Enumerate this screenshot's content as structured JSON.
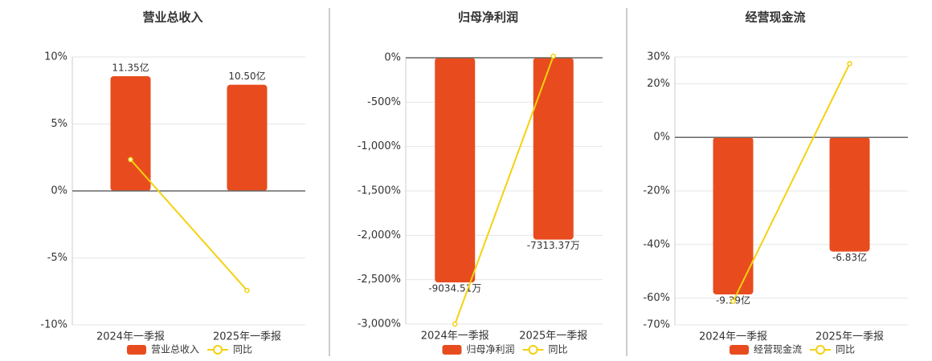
{
  "chart_data": [
    {
      "type": "bar",
      "title": "营业总收入",
      "categories": [
        "2024年一季报",
        "2025年一季报"
      ],
      "series": [
        {
          "name": "营业总收入",
          "type": "bar",
          "color": "#e84c1e",
          "axis": "y2",
          "values": [
            11.35,
            10.5
          ],
          "value_labels": [
            "11.35亿",
            "10.50亿"
          ]
        },
        {
          "name": "同比",
          "type": "line",
          "color": "#f5d10f",
          "values": [
            2.34,
            -7.43
          ]
        }
      ],
      "ylim": [
        -10,
        10
      ],
      "yticks": [
        {
          "value": -10,
          "label": "-10%"
        },
        {
          "value": -5,
          "label": "-5%"
        },
        {
          "value": 0,
          "label": "0%"
        },
        {
          "value": 5,
          "label": "5%"
        },
        {
          "value": 10,
          "label": "10%"
        }
      ],
      "y2lim": [
        -13.25,
        13.25
      ],
      "grid": true
    },
    {
      "type": "bar",
      "title": "归母净利润",
      "categories": [
        "2024年一季报",
        "2025年一季报"
      ],
      "series": [
        {
          "name": "归母净利润",
          "type": "bar",
          "color": "#e84c1e",
          "axis": "y2",
          "values": [
            -9034.51,
            -7313.37
          ],
          "value_labels": [
            "-9034.51万",
            "-7313.37万"
          ]
        },
        {
          "name": "同比",
          "type": "line",
          "color": "#f5d10f",
          "values": [
            -3000,
            18
          ]
        }
      ],
      "ylim": [
        -3000,
        0
      ],
      "yticks": [
        {
          "value": -3000,
          "label": "-3,000%"
        },
        {
          "value": -2500,
          "label": "-2,500%"
        },
        {
          "value": -2000,
          "label": "-2,000%"
        },
        {
          "value": -1500,
          "label": "-1,500%"
        },
        {
          "value": -1000,
          "label": "-1,000%"
        },
        {
          "value": -500,
          "label": "-500%"
        },
        {
          "value": 0,
          "label": "0%"
        }
      ],
      "y2lim": [
        -10712,
        0
      ],
      "grid": true
    },
    {
      "type": "bar",
      "title": "经营现金流",
      "categories": [
        "2024年一季报",
        "2025年一季报"
      ],
      "series": [
        {
          "name": "经营现金流",
          "type": "bar",
          "color": "#e84c1e",
          "axis": "y2",
          "values": [
            -9.39,
            -6.83
          ],
          "value_labels": [
            "-9.39亿",
            "-6.83亿"
          ]
        },
        {
          "name": "同比",
          "type": "line",
          "color": "#f5d10f",
          "values": [
            -61.2,
            27.5
          ]
        }
      ],
      "ylim": [
        -70,
        30
      ],
      "yticks": [
        {
          "value": -70,
          "label": "-70%"
        },
        {
          "value": -60,
          "label": "-60%"
        },
        {
          "value": -40,
          "label": "-40%"
        },
        {
          "value": -20,
          "label": "-20%"
        },
        {
          "value": 0,
          "label": "0%"
        },
        {
          "value": 20,
          "label": "20%"
        },
        {
          "value": 30,
          "label": "30%"
        }
      ],
      "y2lim": [
        -11.21,
        4.79
      ],
      "grid": true
    }
  ]
}
